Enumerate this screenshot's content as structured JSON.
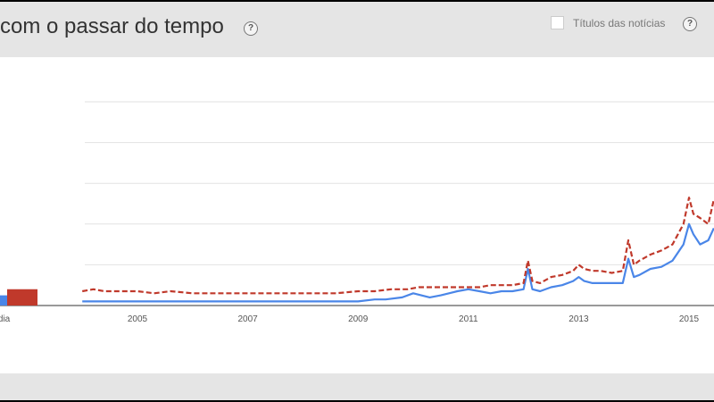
{
  "header": {
    "title": "com o passar do tempo",
    "help_symbol": "?",
    "news_label": "Títulos das notícias",
    "news_checked": false
  },
  "chart_data": {
    "type": "line",
    "title": "",
    "xlabel": "",
    "ylabel": "",
    "x_tick_labels": [
      "2005",
      "2007",
      "2009",
      "2011",
      "2013",
      "2015"
    ],
    "ylim": [
      0,
      100
    ],
    "grid": true,
    "average": {
      "label": "Média",
      "values": [
        5,
        8
      ],
      "colors": [
        "#4a86e8",
        "#c0392b"
      ]
    },
    "series": [
      {
        "color": "#4a86e8",
        "dash": "solid",
        "x": [
          2004.0,
          2004.3,
          2004.6,
          2005.0,
          2005.5,
          2006.0,
          2006.5,
          2007.0,
          2007.5,
          2008.0,
          2008.3,
          2008.5,
          2009.0,
          2009.3,
          2009.5,
          2009.8,
          2010.0,
          2010.3,
          2010.5,
          2010.8,
          2011.0,
          2011.2,
          2011.4,
          2011.6,
          2011.8,
          2012.0,
          2012.08,
          2012.16,
          2012.3,
          2012.5,
          2012.7,
          2012.9,
          2013.0,
          2013.1,
          2013.25,
          2013.4,
          2013.6,
          2013.8,
          2013.9,
          2014.0,
          2014.1,
          2014.3,
          2014.5,
          2014.7,
          2014.9,
          2015.0,
          2015.08,
          2015.2,
          2015.35,
          2015.45
        ],
        "values": [
          2,
          2,
          2,
          2,
          2,
          2,
          2,
          2,
          2,
          2,
          2,
          2,
          2,
          3,
          3,
          4,
          6,
          4,
          5,
          7,
          8,
          7,
          6,
          7,
          7,
          8,
          18,
          8,
          7,
          9,
          10,
          12,
          14,
          12,
          11,
          11,
          11,
          11,
          23,
          14,
          15,
          18,
          19,
          22,
          30,
          40,
          35,
          30,
          32,
          38
        ]
      },
      {
        "color": "#c0392b",
        "dash": "dashed",
        "x": [
          2004.0,
          2004.2,
          2004.4,
          2004.6,
          2004.8,
          2005.0,
          2005.3,
          2005.6,
          2006.0,
          2006.5,
          2007.0,
          2007.3,
          2007.6,
          2008.0,
          2008.3,
          2008.6,
          2009.0,
          2009.3,
          2009.6,
          2009.9,
          2010.1,
          2010.4,
          2010.7,
          2011.0,
          2011.2,
          2011.4,
          2011.6,
          2011.8,
          2012.0,
          2012.08,
          2012.16,
          2012.3,
          2012.5,
          2012.7,
          2012.9,
          2013.0,
          2013.1,
          2013.25,
          2013.4,
          2013.6,
          2013.8,
          2013.9,
          2014.0,
          2014.1,
          2014.3,
          2014.5,
          2014.7,
          2014.9,
          2015.0,
          2015.08,
          2015.2,
          2015.35,
          2015.45
        ],
        "values": [
          7,
          8,
          7,
          7,
          7,
          7,
          6,
          7,
          6,
          6,
          6,
          6,
          6,
          6,
          6,
          6,
          7,
          7,
          8,
          8,
          9,
          9,
          9,
          9,
          9,
          10,
          10,
          10,
          11,
          22,
          12,
          11,
          14,
          15,
          17,
          20,
          18,
          17,
          17,
          16,
          17,
          32,
          20,
          22,
          25,
          27,
          30,
          40,
          53,
          45,
          43,
          40,
          52
        ]
      }
    ]
  },
  "footer": {}
}
